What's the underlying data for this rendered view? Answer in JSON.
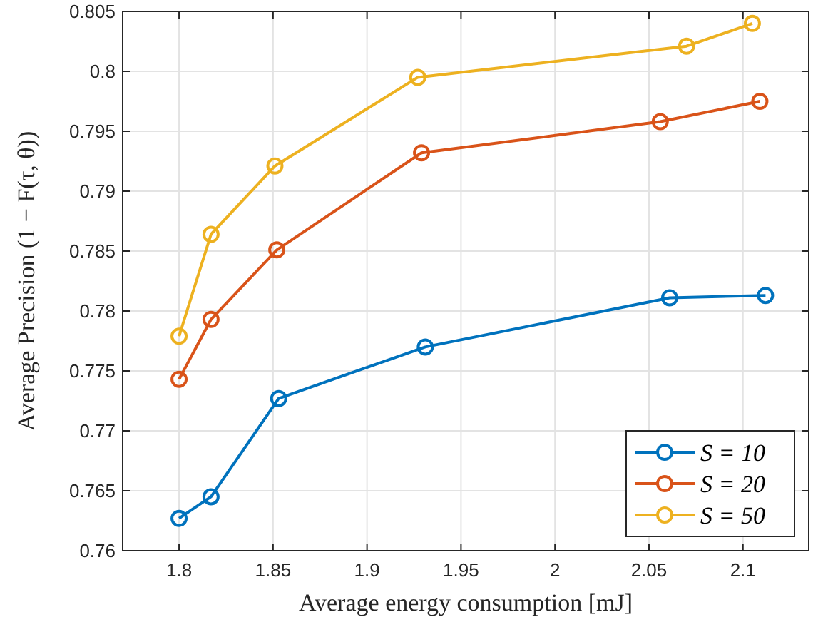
{
  "chart_data": {
    "type": "line",
    "xlabel": "Average energy consumption [mJ]",
    "ylabel": "Average Precision (1 − F(τ, θ))",
    "xlim": [
      1.77,
      2.135
    ],
    "xticks": [
      {
        "value": 1.8,
        "label": "1.8"
      },
      {
        "value": 1.85,
        "label": "1.85"
      },
      {
        "value": 1.9,
        "label": "1.9"
      },
      {
        "value": 1.95,
        "label": "1.95"
      },
      {
        "value": 2,
        "label": "2"
      },
      {
        "value": 2.05,
        "label": "2.05"
      },
      {
        "value": 2.1,
        "label": "2.1"
      }
    ],
    "ylim": [
      0.76,
      0.805
    ],
    "yticks": [
      {
        "value": 0.76,
        "label": "0.76"
      },
      {
        "value": 0.765,
        "label": "0.765"
      },
      {
        "value": 0.77,
        "label": "0.77"
      },
      {
        "value": 0.775,
        "label": "0.775"
      },
      {
        "value": 0.78,
        "label": "0.78"
      },
      {
        "value": 0.785,
        "label": "0.785"
      },
      {
        "value": 0.79,
        "label": "0.79"
      },
      {
        "value": 0.795,
        "label": "0.795"
      },
      {
        "value": 0.8,
        "label": "0.8"
      },
      {
        "value": 0.805,
        "label": "0.805"
      }
    ],
    "grid": true,
    "legend": "bottom right",
    "marker": "circle",
    "line_style": "solid",
    "series": [
      {
        "name": "S = 10",
        "color": "#0072bd",
        "x": [
          1.8,
          1.817,
          1.853,
          1.931,
          2.061,
          2.112
        ],
        "values": [
          0.7627,
          0.7645,
          0.7727,
          0.777,
          0.7811,
          0.7813
        ]
      },
      {
        "name": "S = 20",
        "color": "#d95319",
        "x": [
          1.8,
          1.817,
          1.852,
          1.929,
          2.056,
          2.109
        ],
        "values": [
          0.7743,
          0.7793,
          0.7851,
          0.7932,
          0.7958,
          0.7975
        ]
      },
      {
        "name": "S = 50",
        "color": "#edb120",
        "x": [
          1.8,
          1.817,
          1.851,
          1.927,
          2.07,
          2.105
        ],
        "values": [
          0.7779,
          0.7864,
          0.7921,
          0.7995,
          0.8021,
          0.804
        ]
      }
    ]
  }
}
